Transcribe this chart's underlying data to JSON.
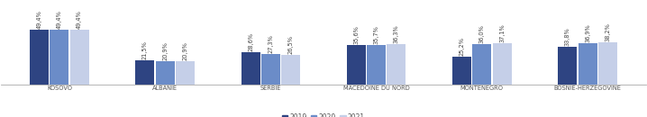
{
  "categories": [
    "KOSOVO",
    "ALBANIE",
    "SERBIE",
    "MACEDOINE DU NORD",
    "MONTENEGRO",
    "BOSNIE-HERZEGOVINE"
  ],
  "values_2019": [
    49.4,
    21.5,
    28.6,
    35.6,
    25.2,
    33.8
  ],
  "values_2020": [
    49.4,
    20.9,
    27.3,
    35.7,
    36.0,
    36.9
  ],
  "values_2021": [
    49.4,
    20.9,
    26.5,
    36.3,
    37.1,
    38.2
  ],
  "labels_2019": [
    "49,4%",
    "21,5%",
    "28,6%",
    "35,6%",
    "25,2%",
    "33,8%"
  ],
  "labels_2020": [
    "49,4%",
    "20,9%",
    "27,3%",
    "35,7%",
    "36,0%",
    "36,9%"
  ],
  "labels_2021": [
    "49,4%",
    "20,9%",
    "26,5%",
    "36,3%",
    "37,1%",
    "38,2%"
  ],
  "color_2019": "#2e4482",
  "color_2020": "#6b8cc8",
  "color_2021": "#c5cfe8",
  "legend_labels": [
    "2019",
    "2020",
    "2021"
  ],
  "ylim": [
    0,
    75
  ],
  "bar_width": 0.18,
  "label_fontsize": 4.8,
  "category_fontsize": 4.8,
  "legend_fontsize": 5.5,
  "background_color": "#ffffff"
}
